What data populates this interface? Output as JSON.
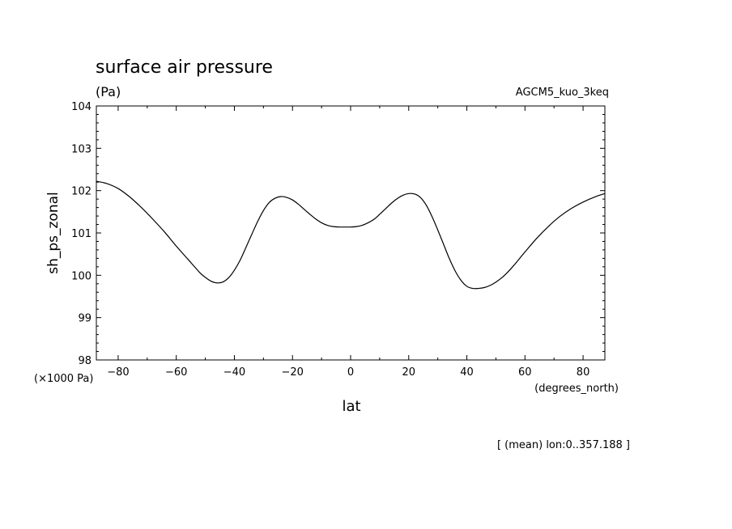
{
  "chart_data": {
    "type": "line",
    "title": "surface air pressure",
    "subtitle": "(Pa)",
    "model_label": "AGCM5_kuo_3keq",
    "xlabel": "lat",
    "x_units": "(degrees_north)",
    "ylabel": "sh_ps_zonal",
    "y_scale_label": "(×1000 Pa)",
    "footnote": "[ (mean) lon:0..357.188 ]",
    "xlim": [
      -87.5,
      87.5
    ],
    "ylim": [
      98,
      104
    ],
    "x_ticks": [
      -80,
      -60,
      -40,
      -20,
      0,
      20,
      40,
      60,
      80
    ],
    "x_tick_labels": [
      "−80",
      "−60",
      "−40",
      "−20",
      "0",
      "20",
      "40",
      "60",
      "80"
    ],
    "y_ticks": [
      98,
      99,
      100,
      101,
      102,
      103,
      104
    ],
    "y_tick_labels": [
      "98",
      "99",
      "100",
      "101",
      "102",
      "103",
      "104"
    ],
    "grid": false,
    "series": [
      {
        "x": [
          -87.5,
          -84,
          -80,
          -76,
          -72,
          -68,
          -64,
          -60,
          -56,
          -52,
          -50,
          -48,
          -46,
          -44,
          -42,
          -40,
          -38,
          -36,
          -34,
          -32,
          -30,
          -28,
          -26,
          -24,
          -22,
          -20,
          -18,
          -16,
          -14,
          -12,
          -10,
          -8,
          -6,
          -4,
          -2,
          0,
          2,
          4,
          6,
          8,
          10,
          12,
          14,
          16,
          18,
          20,
          22,
          24,
          26,
          28,
          30,
          32,
          34,
          36,
          38,
          40,
          42,
          44,
          46,
          48,
          50,
          52,
          54,
          56,
          60,
          64,
          68,
          72,
          76,
          80,
          84,
          87.5
        ],
        "values": [
          102.22,
          102.17,
          102.05,
          101.85,
          101.6,
          101.32,
          101.02,
          100.69,
          100.38,
          100.07,
          99.95,
          99.86,
          99.82,
          99.84,
          99.94,
          100.12,
          100.36,
          100.66,
          100.97,
          101.27,
          101.53,
          101.72,
          101.82,
          101.86,
          101.84,
          101.78,
          101.68,
          101.56,
          101.44,
          101.33,
          101.24,
          101.18,
          101.15,
          101.14,
          101.14,
          101.14,
          101.15,
          101.18,
          101.24,
          101.32,
          101.44,
          101.57,
          101.7,
          101.81,
          101.89,
          101.93,
          101.92,
          101.84,
          101.66,
          101.39,
          101.07,
          100.73,
          100.39,
          100.1,
          99.88,
          99.74,
          99.69,
          99.69,
          99.71,
          99.76,
          99.84,
          99.94,
          100.07,
          100.22,
          100.55,
          100.87,
          101.15,
          101.39,
          101.58,
          101.73,
          101.85,
          101.93
        ]
      }
    ],
    "line_color": "#000000"
  }
}
